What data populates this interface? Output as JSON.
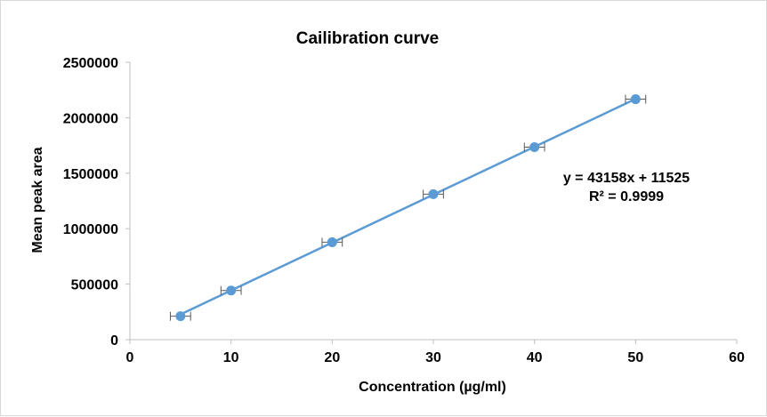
{
  "chart_data": {
    "type": "scatter",
    "title": "Cailibration curve",
    "xlabel": "Concentration (µg/ml)",
    "ylabel": "Mean peak area",
    "xlim": [
      0,
      60
    ],
    "ylim": [
      0,
      2500000
    ],
    "x_ticks": [
      "0",
      "10",
      "20",
      "30",
      "40",
      "50",
      "60"
    ],
    "y_ticks": [
      "0",
      "500000",
      "1000000",
      "1500000",
      "2000000",
      "2500000"
    ],
    "grid": false,
    "legend": "none",
    "series": [
      {
        "x": [
          5,
          10,
          20,
          30,
          40,
          50
        ],
        "y": [
          211000,
          443000,
          878000,
          1311000,
          1735000,
          2167000
        ],
        "x_error": [
          1,
          1,
          1,
          1,
          1,
          1
        ],
        "color": "#5b9bd5"
      }
    ],
    "trendline": {
      "type": "linear",
      "slope": 43158,
      "intercept": 11525,
      "color": "#5b9bd5"
    },
    "annotations": {
      "equation": "y = 43158x + 11525",
      "r_squared": "R² = 0.9999"
    }
  }
}
